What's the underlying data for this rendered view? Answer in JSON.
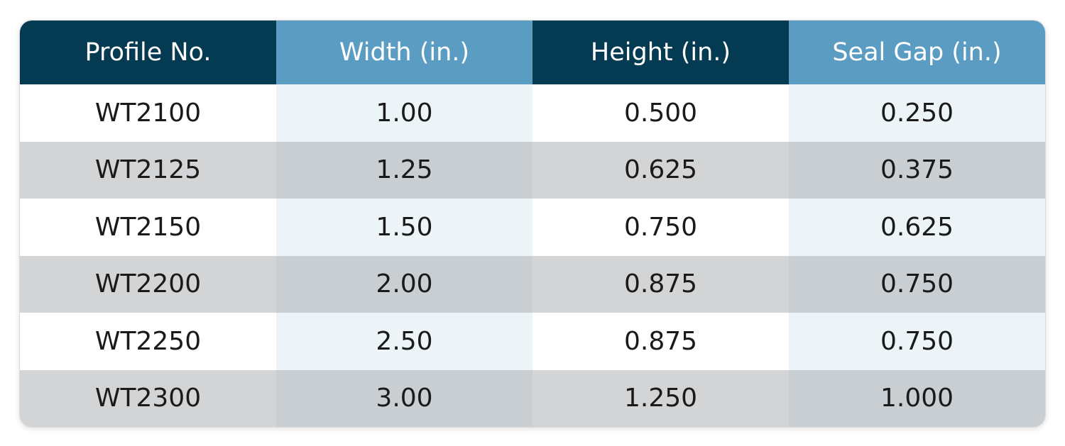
{
  "table": {
    "header": [
      "Profile No.",
      "Width (in.)",
      "Height (in.)",
      "Seal Gap (in.)"
    ],
    "rows": [
      [
        "WT2100",
        "1.00",
        "0.500",
        "0.250"
      ],
      [
        "WT2125",
        "1.25",
        "0.625",
        "0.375"
      ],
      [
        "WT2150",
        "1.50",
        "0.750",
        "0.625"
      ],
      [
        "WT2200",
        "2.00",
        "0.875",
        "0.750"
      ],
      [
        "WT2250",
        "2.50",
        "0.875",
        "0.750"
      ],
      [
        "WT2300",
        "3.00",
        "1.250",
        "1.000"
      ]
    ]
  }
}
